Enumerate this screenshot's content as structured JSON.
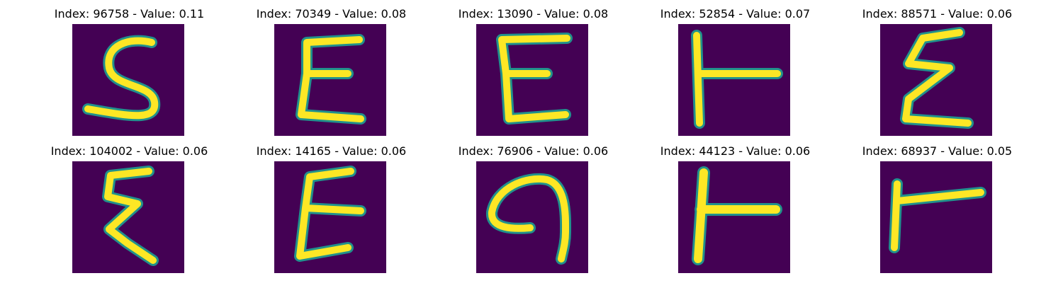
{
  "panels": [
    {
      "index": "96758",
      "value": "0.11",
      "title": "Index: 96758 - Value: 0.11",
      "glyph": "S"
    },
    {
      "index": "70349",
      "value": "0.08",
      "title": "Index: 70349 - Value: 0.08",
      "glyph": "E"
    },
    {
      "index": "13090",
      "value": "0.08",
      "title": "Index: 13090 - Value: 0.08",
      "glyph": "E"
    },
    {
      "index": "52854",
      "value": "0.07",
      "title": "Index: 52854 - Value: 0.07",
      "glyph": "T"
    },
    {
      "index": "88571",
      "value": "0.06",
      "title": "Index: 88571 - Value: 0.06",
      "glyph": "E"
    },
    {
      "index": "104002",
      "value": "0.06",
      "title": "Index: 104002 - Value: 0.06",
      "glyph": "E"
    },
    {
      "index": "14165",
      "value": "0.06",
      "title": "Index: 14165 - Value: 0.06",
      "glyph": "E"
    },
    {
      "index": "76906",
      "value": "0.06",
      "title": "Index: 76906 - Value: 0.06",
      "glyph": "hook"
    },
    {
      "index": "44123",
      "value": "0.06",
      "title": "Index: 44123 - Value: 0.06",
      "glyph": "T"
    },
    {
      "index": "68937",
      "value": "0.05",
      "title": "Index: 68937 - Value: 0.05",
      "glyph": "T"
    }
  ],
  "colors": {
    "background": "#440154",
    "stroke_core": "#fde725",
    "stroke_edge": "#21918c"
  }
}
